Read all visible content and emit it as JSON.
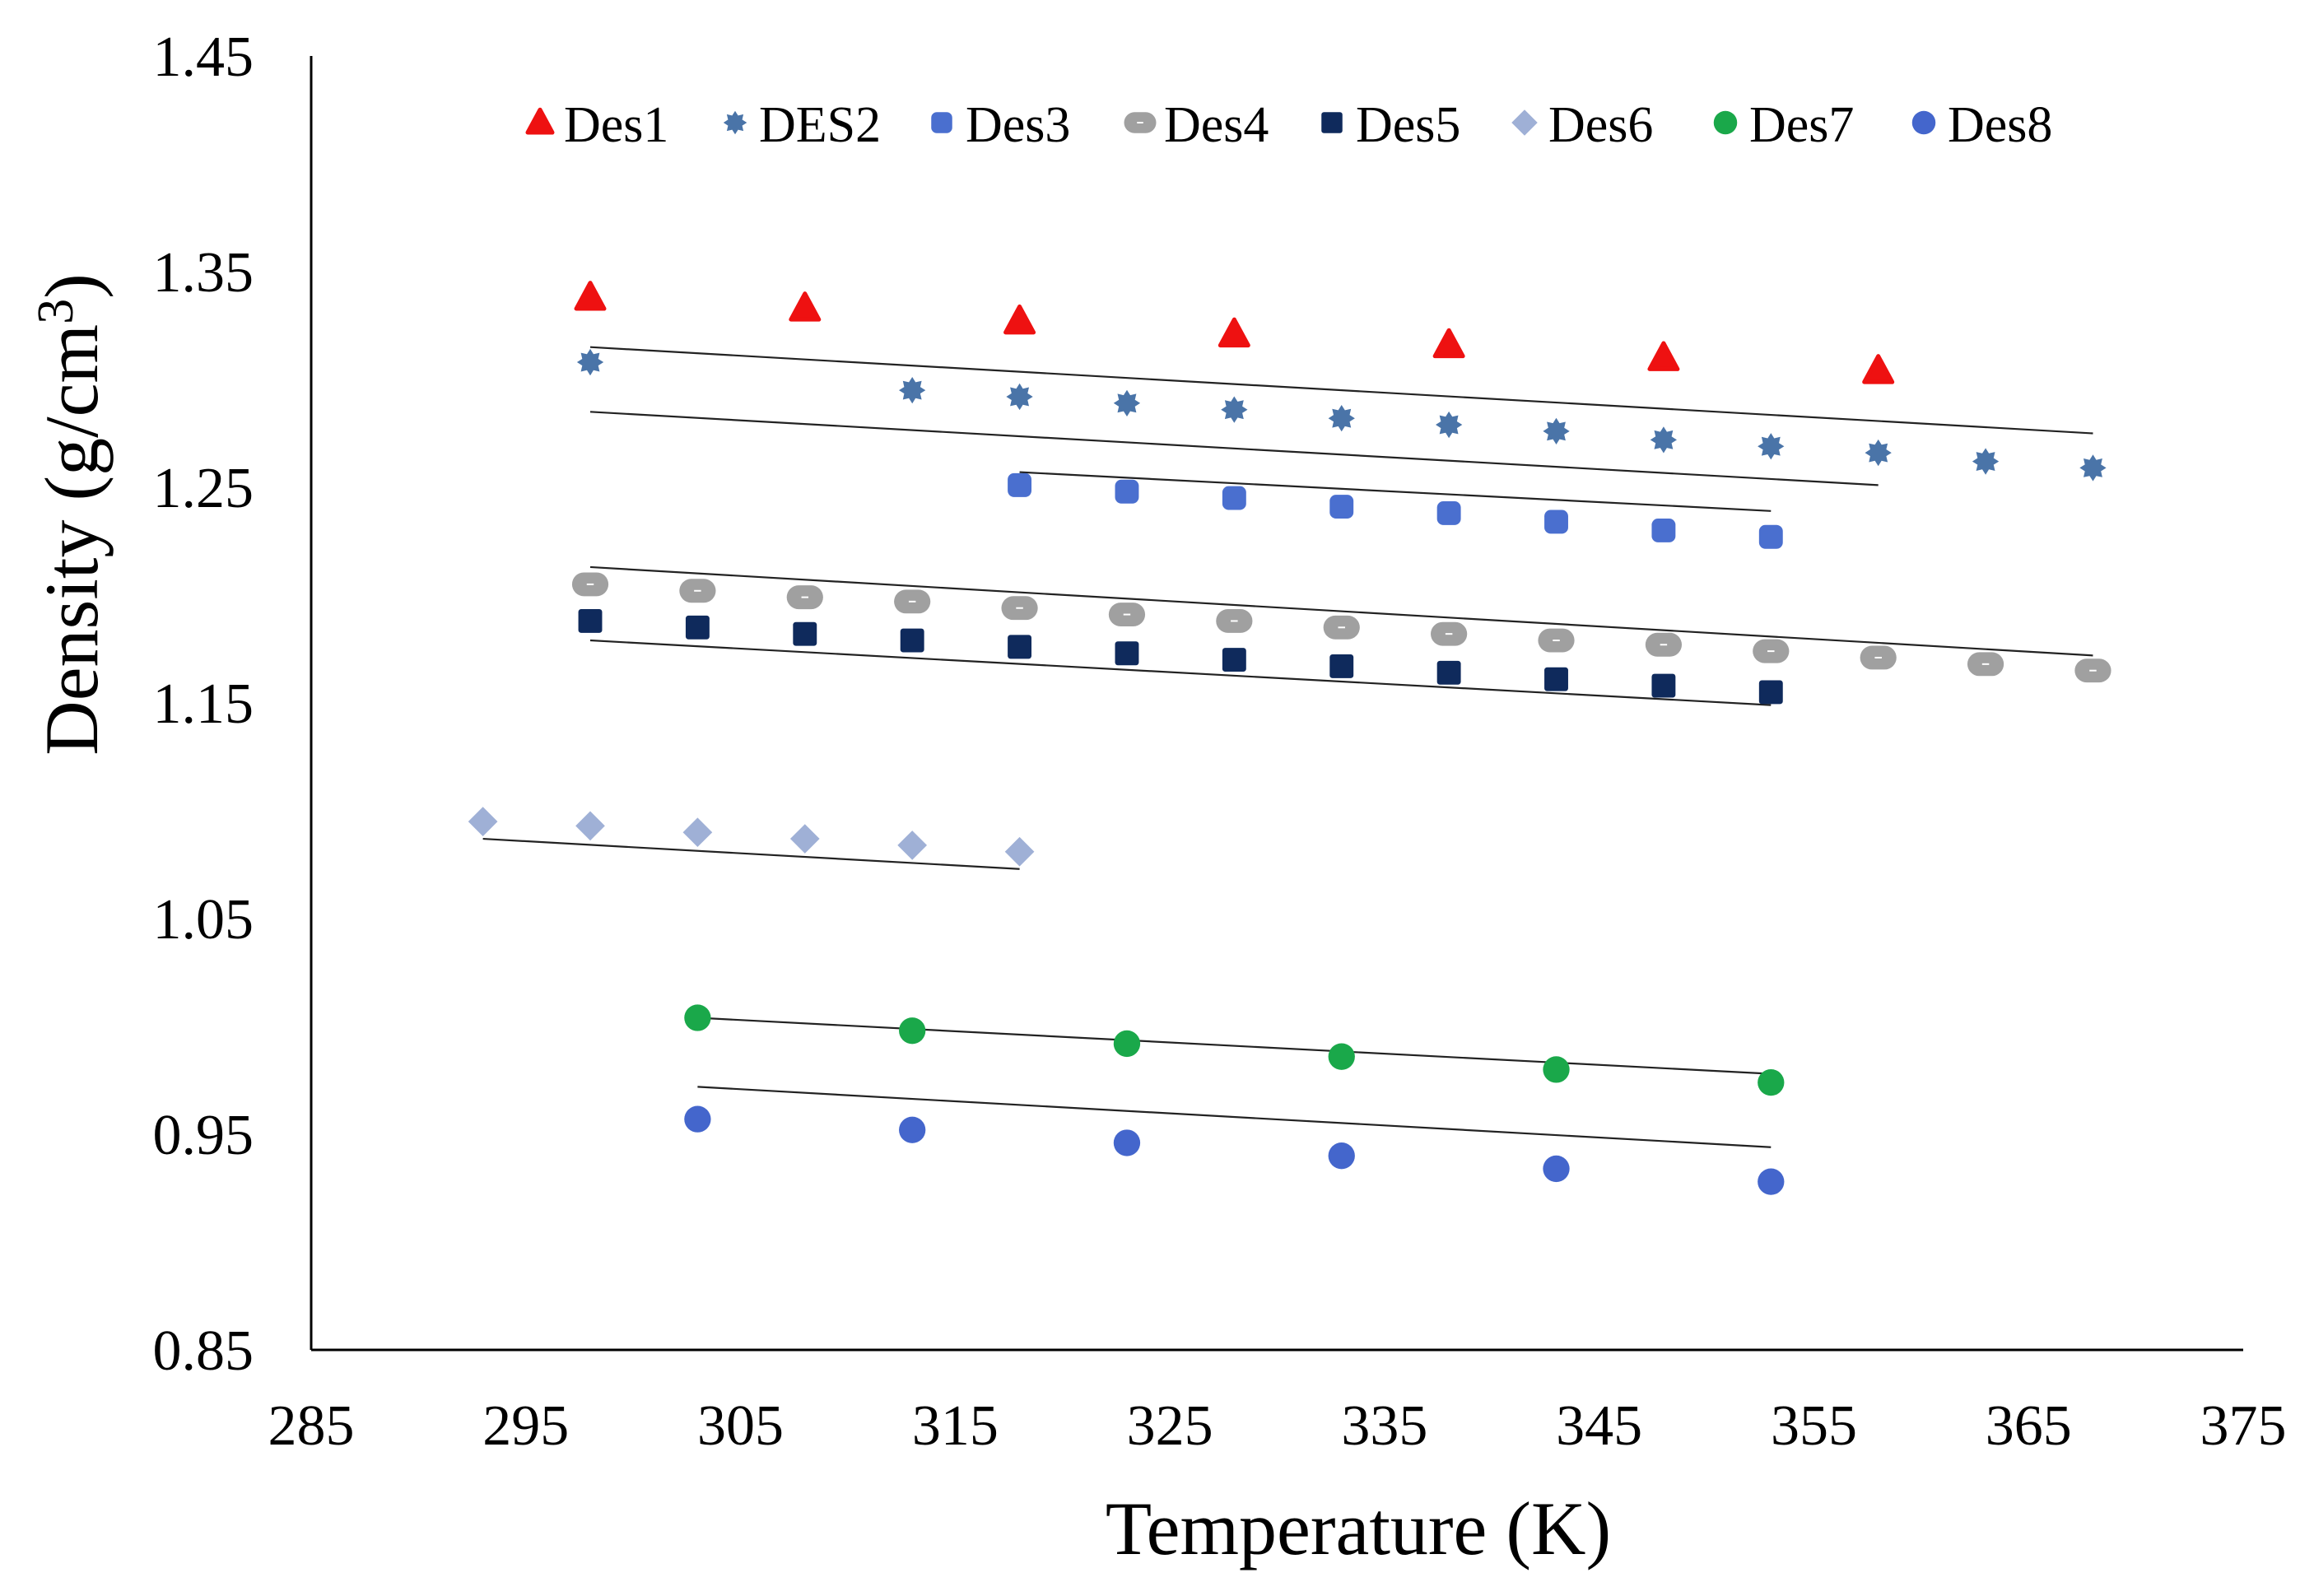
{
  "chart_data": {
    "type": "scatter",
    "title": "",
    "xlabel": "Temperature (K)",
    "ylabel_main": "Density (g/cm",
    "ylabel_sup": "3",
    "ylabel_close": ")",
    "xlim": [
      285,
      375
    ],
    "ylim": [
      0.85,
      1.45
    ],
    "xticks": [
      "285",
      "295",
      "305",
      "315",
      "325",
      "335",
      "345",
      "355",
      "365",
      "375"
    ],
    "yticks": [
      "0.85",
      "0.95",
      "1.05",
      "1.15",
      "1.25",
      "1.35",
      "1.45"
    ],
    "grid": false,
    "legend_position": "top",
    "series": [
      {
        "name": "Des1",
        "marker": "triangle",
        "color": "#ee1111",
        "x": [
          298,
          308,
          318,
          328,
          338,
          348,
          358
        ],
        "y": [
          1.338,
          1.333,
          1.327,
          1.321,
          1.316,
          1.31,
          1.304
        ],
        "trend": [
          [
            298,
            1.315
          ],
          [
            368,
            1.275
          ]
        ]
      },
      {
        "name": "DES2",
        "marker": "star",
        "color": "#4a74a8",
        "x": [
          298,
          313,
          318,
          323,
          328,
          333,
          338,
          343,
          348,
          353,
          358,
          363,
          368
        ],
        "y": [
          1.308,
          1.295,
          1.292,
          1.289,
          1.286,
          1.282,
          1.279,
          1.276,
          1.272,
          1.269,
          1.266,
          1.262,
          1.259
        ],
        "trend": [
          [
            298,
            1.285
          ],
          [
            358,
            1.251
          ]
        ]
      },
      {
        "name": "Des3",
        "marker": "roundsquare",
        "color": "#4a6fcf",
        "x": [
          318,
          323,
          328,
          333,
          338,
          343,
          348,
          353
        ],
        "y": [
          1.251,
          1.248,
          1.245,
          1.241,
          1.238,
          1.234,
          1.23,
          1.227
        ],
        "trend": [
          [
            318,
            1.257
          ],
          [
            353,
            1.239
          ]
        ]
      },
      {
        "name": "Des4",
        "marker": "pill",
        "color": "#a0a0a0",
        "x": [
          298,
          303,
          308,
          313,
          318,
          323,
          328,
          333,
          338,
          343,
          348,
          353,
          358,
          363,
          368
        ],
        "y": [
          1.205,
          1.202,
          1.199,
          1.197,
          1.194,
          1.191,
          1.188,
          1.185,
          1.182,
          1.179,
          1.177,
          1.174,
          1.171,
          1.168,
          1.165
        ],
        "trend": [
          [
            298,
            1.213
          ],
          [
            368,
            1.172
          ]
        ]
      },
      {
        "name": "Des5",
        "marker": "square",
        "color": "#0f2a5c",
        "x": [
          298,
          303,
          308,
          313,
          318,
          323,
          328,
          333,
          338,
          343,
          348,
          353
        ],
        "y": [
          1.188,
          1.185,
          1.182,
          1.179,
          1.176,
          1.173,
          1.17,
          1.167,
          1.164,
          1.161,
          1.158,
          1.155
        ],
        "trend": [
          [
            298,
            1.179
          ],
          [
            353,
            1.149
          ]
        ]
      },
      {
        "name": "Des6",
        "marker": "diamond",
        "color": "#9fb0d6",
        "x": [
          293,
          298,
          303,
          308,
          313,
          318
        ],
        "y": [
          1.095,
          1.093,
          1.09,
          1.087,
          1.084,
          1.081
        ],
        "trend": [
          [
            293,
            1.087
          ],
          [
            318,
            1.073
          ]
        ]
      },
      {
        "name": "Des7",
        "marker": "circle",
        "color": "#1aa84a",
        "x": [
          303,
          313,
          323,
          333,
          343,
          353
        ],
        "y": [
          1.004,
          0.998,
          0.992,
          0.986,
          0.98,
          0.974
        ],
        "trend": [
          [
            303,
            1.004
          ],
          [
            353,
            0.978
          ]
        ]
      },
      {
        "name": "Des8",
        "marker": "circle",
        "color": "#4466cc",
        "x": [
          303,
          313,
          323,
          333,
          343,
          353
        ],
        "y": [
          0.957,
          0.952,
          0.946,
          0.94,
          0.934,
          0.928
        ],
        "trend": [
          [
            303,
            0.972
          ],
          [
            353,
            0.944
          ]
        ]
      }
    ]
  }
}
